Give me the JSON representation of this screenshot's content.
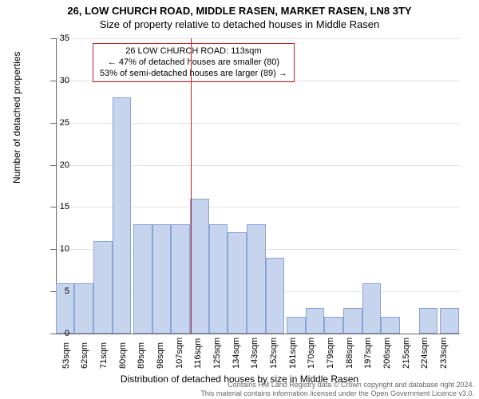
{
  "chart": {
    "type": "histogram",
    "title_main": "26, LOW CHURCH ROAD, MIDDLE RASEN, MARKET RASEN, LN8 3TY",
    "title_sub": "Size of property relative to detached houses in Middle Rasen",
    "background_color": "#ffffff",
    "bar_fill": "#c6d4ed",
    "bar_border": "#8aa4d6",
    "axis_color": "#666666",
    "grid_color": "#666666",
    "grid_opacity": 0.18,
    "ref_line_color": "#c22222",
    "ref_line_value": 113,
    "ylabel": "Number of detached properties",
    "xlabel": "Distribution of detached houses by size in Middle Rasen",
    "ylim": [
      0,
      35
    ],
    "ytick_step": 5,
    "xlim": [
      49,
      241
    ],
    "x_tick_start": 53,
    "x_tick_step": 9,
    "x_tick_count": 21,
    "x_tick_suffix": "sqm",
    "bars": [
      {
        "x": 53,
        "h": 6
      },
      {
        "x": 62,
        "h": 6
      },
      {
        "x": 71,
        "h": 11
      },
      {
        "x": 80,
        "h": 28
      },
      {
        "x": 90,
        "h": 13
      },
      {
        "x": 99,
        "h": 13
      },
      {
        "x": 108,
        "h": 13
      },
      {
        "x": 117,
        "h": 16
      },
      {
        "x": 126,
        "h": 13
      },
      {
        "x": 135,
        "h": 12
      },
      {
        "x": 144,
        "h": 13
      },
      {
        "x": 153,
        "h": 9
      },
      {
        "x": 163,
        "h": 2
      },
      {
        "x": 172,
        "h": 3
      },
      {
        "x": 181,
        "h": 2
      },
      {
        "x": 190,
        "h": 3
      },
      {
        "x": 199,
        "h": 6
      },
      {
        "x": 208,
        "h": 2
      },
      {
        "x": 217,
        "h": 0
      },
      {
        "x": 226,
        "h": 3
      },
      {
        "x": 236,
        "h": 3
      }
    ],
    "annotation": {
      "line1": "26 LOW CHURCH ROAD: 113sqm",
      "line2": "← 47% of detached houses are smaller (80)",
      "line3": "53% of semi-detached houses are larger (89) →"
    }
  },
  "footer": {
    "line1": "Contains HM Land Registry data © Crown copyright and database right 2024.",
    "line2": "This material contains information licensed under the Open Government Licence v3.0."
  }
}
